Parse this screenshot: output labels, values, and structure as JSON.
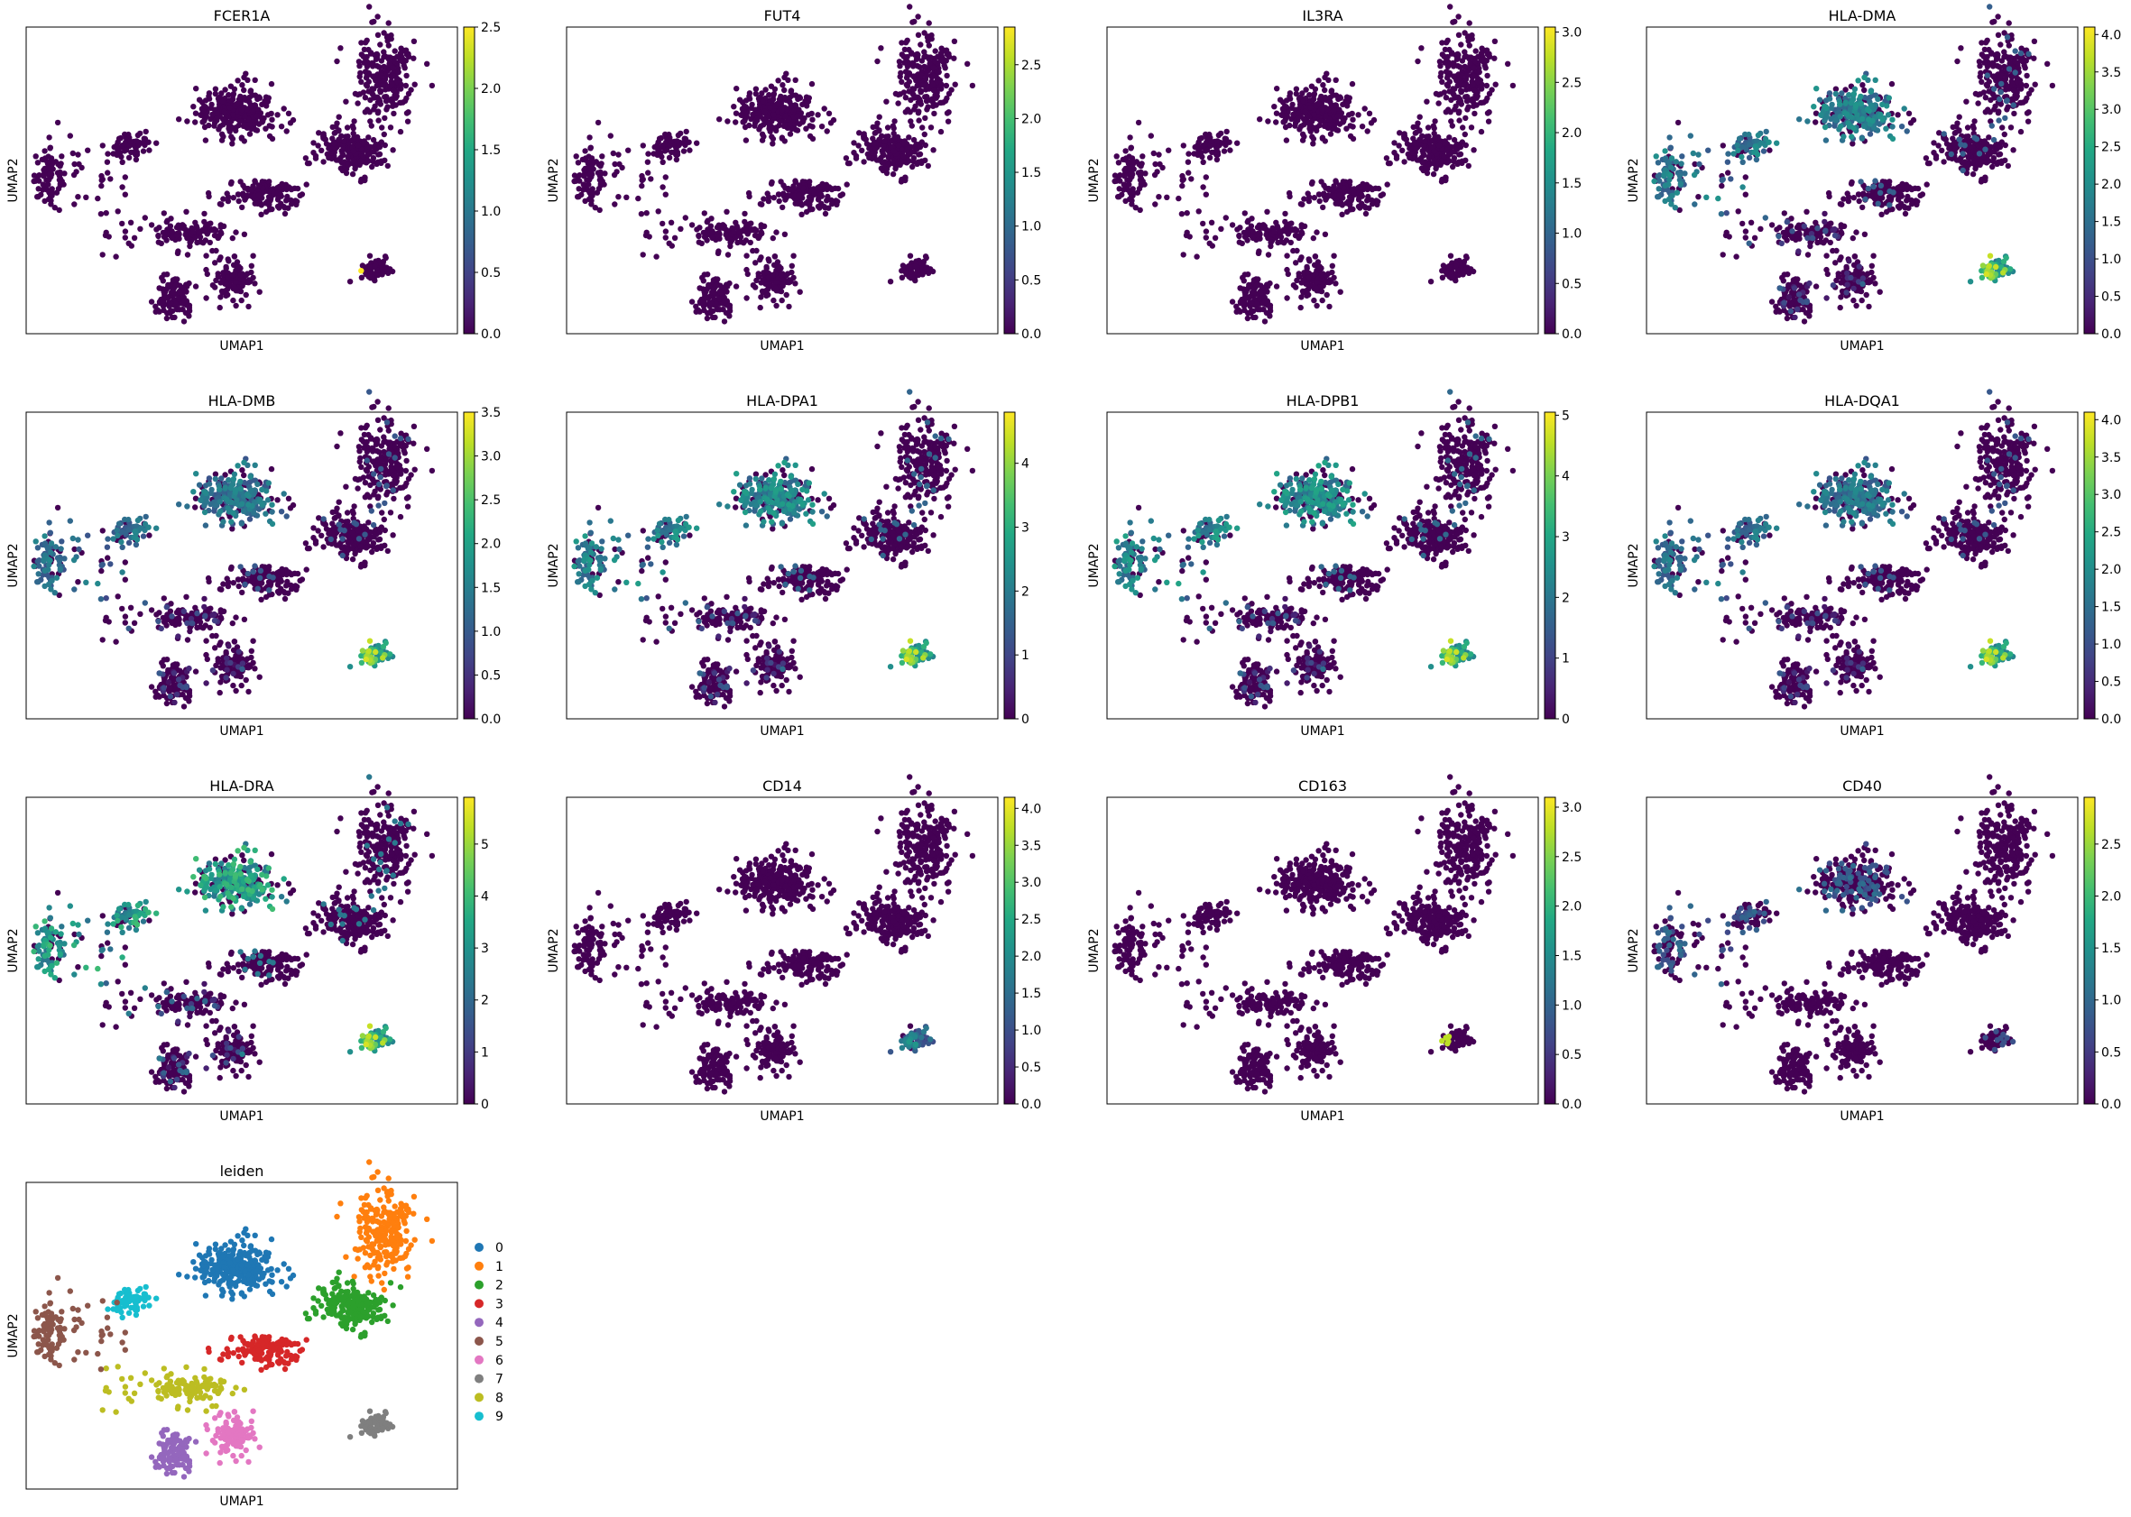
{
  "chart_data": {
    "type": "scatter",
    "xlabel": "UMAP1",
    "ylabel": "UMAP2",
    "grid": false,
    "colormap": [
      "#440154",
      "#482475",
      "#414487",
      "#355f8d",
      "#2a788e",
      "#21918c",
      "#22a884",
      "#44bf70",
      "#7ad151",
      "#bddf26",
      "#fde725"
    ],
    "panels": [
      {
        "title": "FCER1A",
        "max": 2.5,
        "ticks": [
          "0.0",
          "0.5",
          "1.0",
          "1.5",
          "2.0",
          "2.5"
        ],
        "pattern": "rare",
        "hot": [
          [
            8.5,
            -4.2,
            1.0
          ]
        ]
      },
      {
        "title": "FUT4",
        "max": 2.85,
        "ticks": [
          "0.0",
          "0.5",
          "1.0",
          "1.5",
          "2.0",
          "2.5"
        ],
        "pattern": "rare",
        "hot": [
          [
            7.6,
            -4.0,
            1.0
          ]
        ]
      },
      {
        "title": "IL3RA",
        "max": 3.05,
        "ticks": [
          "0.0",
          "0.5",
          "1.0",
          "1.5",
          "2.0",
          "2.5",
          "3.0"
        ],
        "pattern": "rare",
        "hot": [
          [
            6.4,
            -3.5,
            0.8
          ],
          [
            10.8,
            3.4,
            0.7
          ]
        ]
      },
      {
        "title": "HLA-DMA",
        "max": 4.1,
        "ticks": [
          "0.0",
          "0.5",
          "1.0",
          "1.5",
          "2.0",
          "2.5",
          "3.0",
          "3.5",
          "4.0"
        ],
        "pattern": "mhc",
        "strength": 0.6
      },
      {
        "title": "HLA-DMB",
        "max": 3.5,
        "ticks": [
          "0.0",
          "0.5",
          "1.0",
          "1.5",
          "2.0",
          "2.5",
          "3.0",
          "3.5"
        ],
        "pattern": "mhc",
        "strength": 0.55
      },
      {
        "title": "HLA-DPA1",
        "max": 4.8,
        "ticks": [
          "0",
          "1",
          "2",
          "3",
          "4"
        ],
        "pattern": "mhc",
        "strength": 0.65
      },
      {
        "title": "HLA-DPB1",
        "max": 5.05,
        "ticks": [
          "0",
          "1",
          "2",
          "3",
          "4",
          "5"
        ],
        "pattern": "mhc",
        "strength": 0.68
      },
      {
        "title": "HLA-DQA1",
        "max": 4.1,
        "ticks": [
          "0.0",
          "0.5",
          "1.0",
          "1.5",
          "2.0",
          "2.5",
          "3.0",
          "3.5",
          "4.0"
        ],
        "pattern": "mhc",
        "strength": 0.55
      },
      {
        "title": "HLA-DRA",
        "max": 5.9,
        "ticks": [
          "0",
          "1",
          "2",
          "3",
          "4",
          "5"
        ],
        "pattern": "mhc",
        "strength": 0.8
      },
      {
        "title": "CD14",
        "max": 4.15,
        "ticks": [
          "0.0",
          "0.5",
          "1.0",
          "1.5",
          "2.0",
          "2.5",
          "3.0",
          "3.5",
          "4.0"
        ],
        "pattern": "mono",
        "strength": 0.7
      },
      {
        "title": "CD163",
        "max": 3.1,
        "ticks": [
          "0.0",
          "0.5",
          "1.0",
          "1.5",
          "2.0",
          "2.5",
          "3.0"
        ],
        "pattern": "rare",
        "hot": [
          [
            8.6,
            -3.8,
            0.9
          ],
          [
            10.9,
            3.3,
            0.8
          ]
        ]
      },
      {
        "title": "CD40",
        "max": 2.95,
        "ticks": [
          "0.0",
          "0.5",
          "1.0",
          "1.5",
          "2.0",
          "2.5"
        ],
        "pattern": "cd40",
        "strength": 0.5
      }
    ],
    "leiden": {
      "title": "leiden",
      "clusters": [
        {
          "name": "0",
          "color": "#1f77b4"
        },
        {
          "name": "1",
          "color": "#ff7f0e"
        },
        {
          "name": "2",
          "color": "#2ca02c"
        },
        {
          "name": "3",
          "color": "#d62728"
        },
        {
          "name": "4",
          "color": "#9467bd"
        },
        {
          "name": "5",
          "color": "#8c564b"
        },
        {
          "name": "6",
          "color": "#e377c2"
        },
        {
          "name": "7",
          "color": "#7f7f7f"
        },
        {
          "name": "8",
          "color": "#bcbd22"
        },
        {
          "name": "9",
          "color": "#17becf"
        }
      ]
    }
  }
}
